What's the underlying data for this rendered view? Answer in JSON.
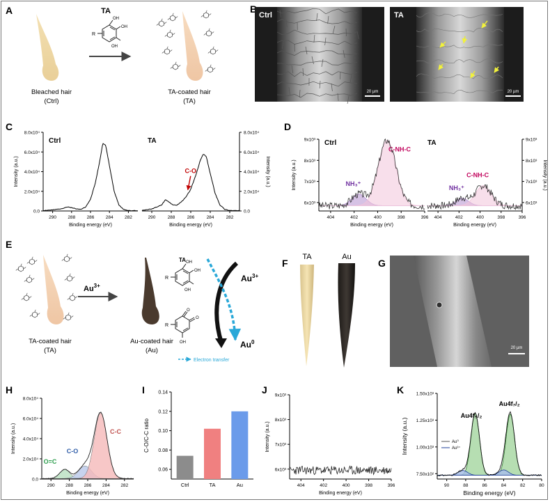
{
  "panels": {
    "A": {
      "letter": "A",
      "reagent": "TA",
      "left_caption": [
        "Bleached hair",
        "(Ctrl)"
      ],
      "right_caption": [
        "TA-coated hair",
        "(TA)"
      ],
      "molecule": {
        "r": "R",
        "oh": [
          "OH",
          "OH",
          "OH"
        ]
      }
    },
    "B": {
      "letter": "B",
      "images": [
        {
          "label": "Ctrl",
          "scale": "20 µm"
        },
        {
          "label": "TA",
          "scale": "20 µm"
        }
      ],
      "arrow_color": "#e8e83a"
    },
    "C": {
      "letter": "C"
    },
    "D": {
      "letter": "D"
    },
    "E": {
      "letter": "E",
      "reagent": "Au3+",
      "left_caption": [
        "TA-coated hair",
        "(TA)"
      ],
      "middle_caption": [
        "Au-coated hair",
        "(Au)"
      ],
      "scheme_title": "TA",
      "au_in": "Au",
      "au_in_sup": "3+",
      "au_out": "Au",
      "au_out_sup": "0",
      "electron_transfer": "Electron transfer",
      "molecule": {
        "r": "R",
        "oh": [
          "OH",
          "OH",
          "OH"
        ],
        "o": [
          "O",
          "O"
        ],
        "oh2": "OH"
      },
      "transfer_color": "#29a8d8"
    },
    "F": {
      "letter": "F",
      "labels": [
        "TA",
        "Au"
      ]
    },
    "G": {
      "letter": "G",
      "scale": "20 µm"
    },
    "H": {
      "letter": "H"
    },
    "I": {
      "letter": "I"
    },
    "J": {
      "letter": "J"
    },
    "K": {
      "letter": "K"
    }
  },
  "chart_data": [
    {
      "id": "C",
      "type": "line",
      "panels": [
        {
          "label": "Ctrl",
          "xlim": [
            291,
            281
          ],
          "xticks": [
            290,
            288,
            286,
            284,
            282
          ],
          "x": [
            291,
            290,
            289,
            288.5,
            288,
            287.5,
            287,
            286.5,
            286,
            285.5,
            285,
            284.7,
            284.4,
            284,
            283.5,
            283,
            282.5,
            282,
            281
          ],
          "y": [
            0.05,
            0.1,
            0.25,
            0.4,
            0.35,
            0.2,
            0.2,
            0.4,
            1.2,
            2.8,
            5.2,
            6.9,
            6.7,
            4.6,
            2.0,
            0.6,
            0.15,
            0.05,
            0.02
          ]
        },
        {
          "label": "TA",
          "xlim": [
            291,
            281
          ],
          "xticks": [
            290,
            288,
            286,
            284,
            282
          ],
          "x": [
            291,
            290,
            289,
            288.6,
            288.2,
            287.8,
            287.4,
            287,
            286.5,
            286,
            285.5,
            285,
            284.7,
            284.4,
            284,
            283.5,
            283,
            282.5,
            282,
            281
          ],
          "y": [
            0.05,
            0.2,
            0.6,
            1.15,
            0.9,
            0.6,
            0.6,
            0.9,
            1.4,
            2.2,
            3.6,
            5.2,
            5.8,
            5.5,
            3.8,
            1.8,
            0.6,
            0.15,
            0.05,
            0.02
          ]
        }
      ],
      "annotation": {
        "text": "C-O",
        "x": 286.3,
        "color": "#c00000"
      },
      "ylim": [
        0,
        8
      ],
      "yticks_left": [
        "0.0",
        "2.0x10⁴",
        "4.0x10⁴",
        "6.0x10⁴",
        "8.0x10⁴"
      ],
      "yticks_right": [
        "0.0",
        "2.0x10⁴",
        "4.0x10⁴",
        "6.0x10⁴",
        "8.0x10⁴"
      ],
      "xlabel": "Binding energy (eV)",
      "ylabel": "Intensity (a.u.)"
    },
    {
      "id": "D",
      "type": "line",
      "panels": [
        {
          "label": "Ctrl",
          "xlim": [
            405,
            396
          ],
          "xticks": [
            404,
            402,
            400,
            398,
            396
          ],
          "peaks": [
            {
              "name": "NH₃⁺",
              "center": 401.6,
              "height": 0.55,
              "width": 0.6,
              "fill": "#b58fd0"
            },
            {
              "name": "C-NH-C",
              "center": 399.2,
              "height": 3.1,
              "width": 0.75,
              "fill": "#f2c4da"
            }
          ],
          "noise_seed": 3
        },
        {
          "label": "TA",
          "xlim": [
            405,
            396
          ],
          "xticks": [
            404,
            402,
            400,
            398,
            396
          ],
          "peaks": [
            {
              "name": "NH₃⁺",
              "center": 401.7,
              "height": 0.35,
              "width": 0.6,
              "fill": "#b58fd0"
            },
            {
              "name": "C-NH-C",
              "center": 399.7,
              "height": 0.95,
              "width": 0.75,
              "fill": "#f2c4da"
            }
          ],
          "noise_seed": 7
        }
      ],
      "baseline": 5.6,
      "ylim": [
        5.6,
        9
      ],
      "peak_label_colors": {
        "NH₃⁺": "#7030a0",
        "C-NH-C": "#c0005a"
      },
      "yticks_left": [
        "6x10³",
        "7x10³",
        "8x10³",
        "9x10³"
      ],
      "yticks_right": [
        "6x10³",
        "7x10³",
        "8x10³",
        "9x10³"
      ],
      "xlabel": "Binding energy (eV)",
      "ylabel": "Intensity (a.u.)"
    },
    {
      "id": "H",
      "type": "area",
      "xlim": [
        291,
        281
      ],
      "xticks": [
        290,
        288,
        286,
        284,
        282
      ],
      "ylim": [
        0,
        8
      ],
      "yticks": [
        "0.0",
        "2.0x10⁴",
        "4.0x10⁴",
        "6.0x10⁴",
        "8.0x10⁴"
      ],
      "peaks": [
        {
          "name": "O=C",
          "center": 288.5,
          "height": 0.9,
          "width": 0.55,
          "fill": "#b8e0bf",
          "label_color": "#2e9e4e"
        },
        {
          "name": "C-O",
          "center": 286.3,
          "height": 1.25,
          "width": 0.7,
          "fill": "#b9c8ea",
          "label_color": "#2f5da8"
        },
        {
          "name": "C-C",
          "center": 284.6,
          "height": 6.5,
          "width": 0.7,
          "fill": "#f5b9b9",
          "label_color": "#c0504d"
        }
      ],
      "xlabel": "Binding energy (eV)",
      "ylabel": "Intensity (a.u.)"
    },
    {
      "id": "I",
      "type": "bar",
      "categories": [
        "Ctrl",
        "TA",
        "Au"
      ],
      "values": [
        0.074,
        0.102,
        0.12
      ],
      "colors": [
        "#8c8c8c",
        "#f08080",
        "#6b9bea"
      ],
      "ylim": [
        0.05,
        0.14
      ],
      "yticks": [
        0.06,
        0.08,
        0.1,
        0.12,
        0.14
      ],
      "ytick_labels": [
        "0.06",
        "0.08",
        "0.10",
        "0.12",
        "0.14"
      ],
      "ylabel": "C-O/C-C ratio"
    },
    {
      "id": "J",
      "type": "line",
      "xlim": [
        405,
        396
      ],
      "xticks": [
        404,
        402,
        400,
        398,
        396
      ],
      "ylim": [
        5.6,
        9
      ],
      "yticks": [
        "6x10³",
        "7x10³",
        "8x10³",
        "9x10³"
      ],
      "baseline": 5.95,
      "xlabel": "Binding energy (eV)",
      "ylabel": "Intensity (a.u.)"
    },
    {
      "id": "K",
      "type": "area",
      "xlim": [
        91,
        80
      ],
      "xticks": [
        90,
        88,
        86,
        84,
        82,
        80
      ],
      "ylim": [
        0.7,
        1.5
      ],
      "yticks": [
        "7.50x10²",
        "1.00x10³",
        "1.25x10³",
        "1.50x10³"
      ],
      "ytick_values": [
        0.75,
        1.0,
        1.25,
        1.5
      ],
      "baseline": 0.735,
      "peaks": [
        {
          "name": "Au⁰",
          "center": 87.0,
          "height": 0.58,
          "width": 0.45,
          "fill": "#a9d8a4",
          "line": "#2e7a2e"
        },
        {
          "name": "Au⁰",
          "center": 83.3,
          "height": 0.57,
          "width": 0.45,
          "fill": "#a9d8a4",
          "line": "#2e7a2e"
        },
        {
          "name": "Au³⁺",
          "center": 88.3,
          "height": 0.045,
          "width": 0.5,
          "fill": "#a9c0e8",
          "line": "#1f3f99"
        },
        {
          "name": "Au³⁺",
          "center": 84.0,
          "height": 0.05,
          "width": 0.5,
          "fill": "#a9c0e8",
          "line": "#1f3f99"
        }
      ],
      "legend": [
        "Au⁰",
        "Au³⁺"
      ],
      "peak_labels": [
        "Au4f₅/₂",
        "Au4f₇/₂"
      ],
      "xlabel": "Binding energy (eV)",
      "ylabel": "Intensity (a.u.)"
    }
  ]
}
